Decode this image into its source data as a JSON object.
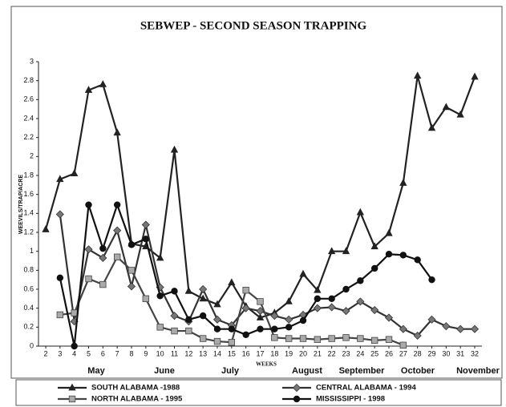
{
  "chart_data": {
    "type": "line",
    "title": "SEBWEP - SECOND SEASON TRAPPING",
    "y_label": "WEEVILS/TRAP/ACRE",
    "x_label": "WEEKS",
    "months": [
      "May",
      "June",
      "July",
      "August",
      "September",
      "October",
      "November"
    ],
    "x": [
      2,
      3,
      4,
      5,
      6,
      7,
      8,
      9,
      10,
      11,
      12,
      13,
      14,
      15,
      16,
      17,
      18,
      19,
      20,
      21,
      22,
      23,
      24,
      25,
      26,
      27,
      28,
      29,
      30,
      31,
      32
    ],
    "xlim": [
      2,
      32
    ],
    "xticks": [
      2,
      3,
      4,
      5,
      6,
      7,
      8,
      9,
      10,
      11,
      12,
      13,
      14,
      15,
      16,
      17,
      18,
      19,
      20,
      21,
      22,
      23,
      24,
      25,
      26,
      27,
      28,
      29,
      30,
      31,
      32
    ],
    "ylim": [
      0,
      3
    ],
    "yticks": [
      0,
      0.2,
      0.4,
      0.6,
      0.8,
      1,
      1.2,
      1.4,
      1.6,
      1.8,
      2,
      2.2,
      2.4,
      2.6,
      2.8,
      3
    ],
    "grid": false,
    "series": [
      {
        "name": "SOUTH ALABAMA -1988",
        "color": "#222222",
        "marker": "triangle",
        "marker_fill": "#222222",
        "values": [
          1.23,
          1.76,
          1.82,
          2.7,
          2.76,
          2.25,
          1.08,
          1.05,
          0.93,
          2.07,
          0.58,
          0.5,
          0.44,
          0.67,
          0.42,
          0.3,
          0.35,
          0.47,
          0.76,
          0.59,
          1.0,
          1.0,
          1.41,
          1.05,
          1.19,
          1.72,
          2.85,
          2.3,
          2.52,
          2.44,
          2.84
        ]
      },
      {
        "name": "CENTRAL ALABAMA - 1994",
        "color": "#333333",
        "marker": "diamond",
        "marker_fill": "#777777",
        "values": [
          null,
          1.39,
          0.26,
          1.02,
          0.93,
          1.22,
          0.63,
          1.28,
          0.62,
          0.32,
          0.26,
          0.6,
          0.28,
          0.22,
          0.4,
          0.37,
          0.32,
          0.28,
          0.33,
          0.4,
          0.41,
          0.37,
          0.47,
          0.38,
          0.3,
          0.18,
          0.11,
          0.28,
          0.21,
          0.18,
          0.18
        ]
      },
      {
        "name": "NORTH ALABAMA - 1995",
        "color": "#444444",
        "marker": "square",
        "marker_fill": "#aaaaaa",
        "values": [
          null,
          0.33,
          0.35,
          0.71,
          0.65,
          0.94,
          0.8,
          0.5,
          0.2,
          0.16,
          0.16,
          0.08,
          0.05,
          0.04,
          0.59,
          0.47,
          0.09,
          0.08,
          0.08,
          0.07,
          0.08,
          0.09,
          0.08,
          0.06,
          0.07,
          0.01,
          null,
          null,
          null,
          null,
          null
        ]
      },
      {
        "name": "MISSISSIPPI - 1998",
        "color": "#111111",
        "marker": "circle",
        "marker_fill": "#111111",
        "values": [
          null,
          0.72,
          0.0,
          1.49,
          1.03,
          1.49,
          1.07,
          1.13,
          0.53,
          0.58,
          0.28,
          0.32,
          0.18,
          0.18,
          0.12,
          0.18,
          0.18,
          0.2,
          0.27,
          0.5,
          0.5,
          0.6,
          0.69,
          0.82,
          0.97,
          0.96,
          0.91,
          0.7,
          null,
          null,
          null
        ]
      }
    ]
  }
}
